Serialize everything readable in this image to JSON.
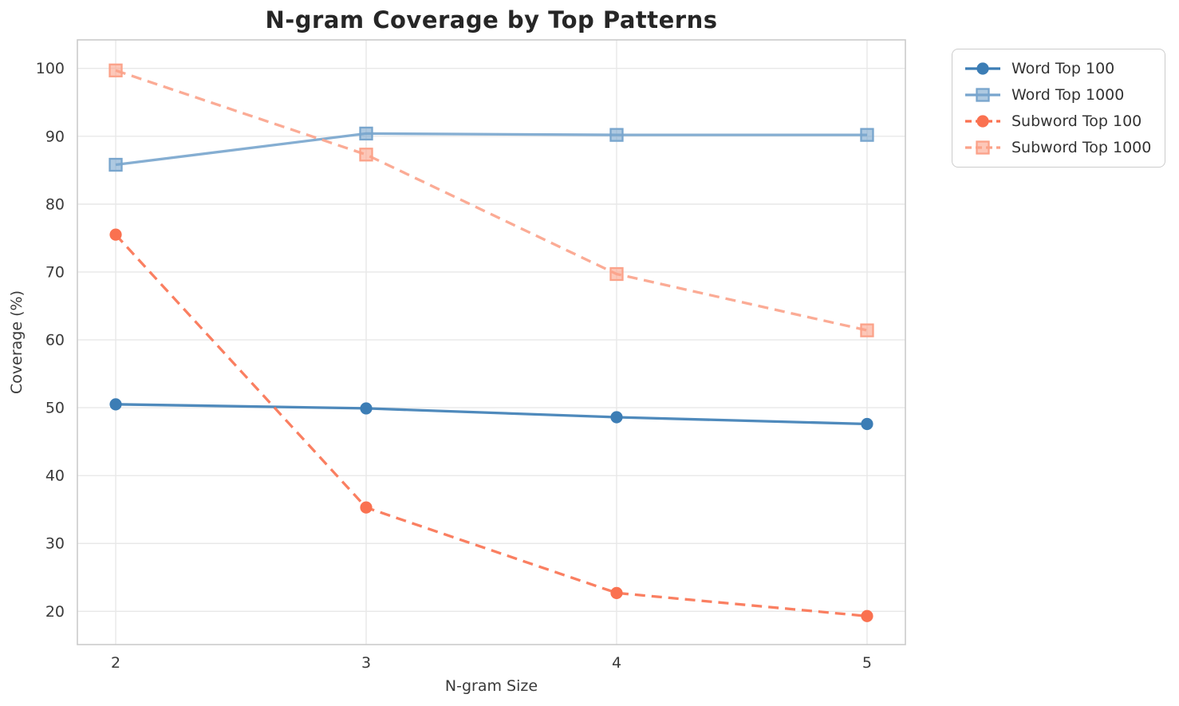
{
  "chart_data": {
    "type": "line",
    "title": "N-gram Coverage by Top Patterns",
    "xlabel": "N-gram Size",
    "ylabel": "Coverage (%)",
    "x": [
      2,
      3,
      4,
      5
    ],
    "xticks": [
      2,
      3,
      4,
      5
    ],
    "yticks": [
      20,
      30,
      40,
      50,
      60,
      70,
      80,
      90,
      100
    ],
    "xlim": [
      1.847,
      5.153
    ],
    "ylim": [
      15.1,
      104.2
    ],
    "grid": true,
    "legend_position": "outside-top-right",
    "series": [
      {
        "name": "Word Top 100",
        "values": [
          50.5,
          49.9,
          48.6,
          47.6
        ],
        "color": "#3c7db5",
        "line_style": "solid",
        "marker": "circle"
      },
      {
        "name": "Word Top 1000",
        "values": [
          85.8,
          90.4,
          90.2,
          90.2
        ],
        "color": "#78a5cd",
        "line_style": "solid",
        "marker": "square"
      },
      {
        "name": "Subword Top 100",
        "values": [
          75.5,
          35.3,
          22.7,
          19.3
        ],
        "color": "#fa7150",
        "line_style": "dashed",
        "marker": "circle"
      },
      {
        "name": "Subword Top 1000",
        "values": [
          99.7,
          87.3,
          69.7,
          61.4
        ],
        "color": "#fba289",
        "line_style": "dashed",
        "marker": "square"
      }
    ],
    "style": {
      "grid_color": "#e8e8e8",
      "spine_color": "#cbcbcb",
      "tick_label_color": "#3a3a3a",
      "title_color": "#262626",
      "background": "#ffffff"
    }
  }
}
